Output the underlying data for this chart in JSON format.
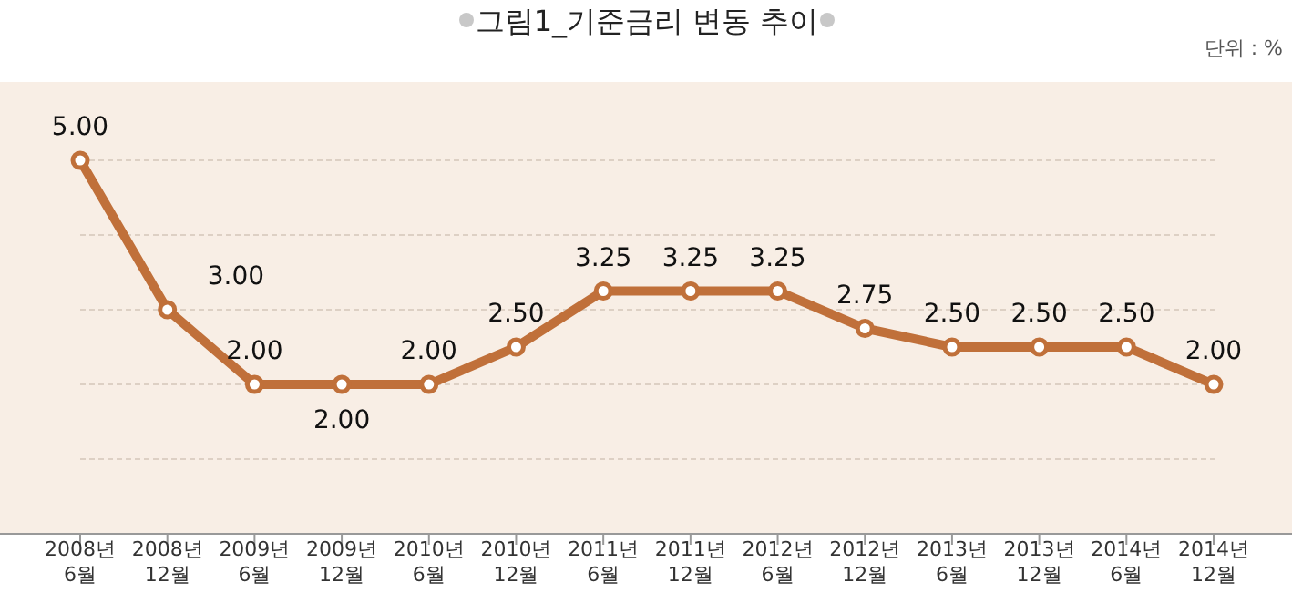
{
  "chart_data": {
    "type": "line",
    "title": "그림1_기준금리 변동 추이",
    "annotations": [
      "단위 : %"
    ],
    "categories": [
      "2008년 6월",
      "2008년 12월",
      "2009년 6월",
      "2009년 12월",
      "2010년 6월",
      "2010년 12월",
      "2011년 6월",
      "2011년 12월",
      "2012년 6월",
      "2012년 12월",
      "2013년 6월",
      "2013년 12월",
      "2014년 6월",
      "2014년 12월"
    ],
    "series": [
      {
        "color": "#c0703a",
        "values": [
          5.0,
          3.0,
          2.0,
          2.0,
          2.0,
          2.5,
          3.25,
          3.25,
          3.25,
          2.75,
          2.5,
          2.5,
          2.5,
          2.0
        ],
        "value_labels": [
          "5.00",
          "3.00",
          "2.00",
          "2.00",
          "2.00",
          "2.50",
          "3.25",
          "3.25",
          "3.25",
          "2.75",
          "2.50",
          "2.50",
          "2.50",
          "2.00"
        ]
      }
    ],
    "ylim": [
      0,
      6
    ],
    "yticks": [
      {
        "value": 1,
        "label": null
      },
      {
        "value": 2,
        "label": null
      },
      {
        "value": 3,
        "label": null
      },
      {
        "value": 4,
        "label": null
      },
      {
        "value": 5,
        "label": null
      }
    ],
    "grid": "y",
    "marker": "circle",
    "line_style": "solid",
    "tick_labels": "x"
  }
}
